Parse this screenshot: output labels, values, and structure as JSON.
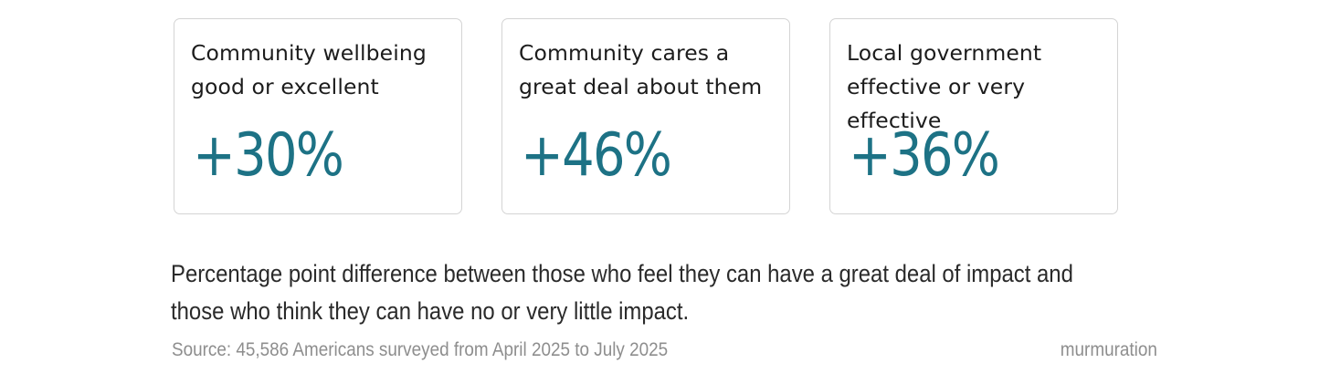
{
  "chart_data": {
    "type": "table",
    "cards": [
      {
        "label": "Community wellbeing good or excellent",
        "value_label": "+30%",
        "value": 30
      },
      {
        "label": "Community cares a great deal about them",
        "value_label": "+46%",
        "value": 46
      },
      {
        "label": "Local government effective or very effective",
        "value_label": "+36%",
        "value": 36
      }
    ],
    "caption": "Percentage point difference between those who feel they can have a great deal of impact and those who think they can have no or very little impact.",
    "source": "Source: 45,586 Americans surveyed from April 2025 to July 2025",
    "brand": "murmuration"
  },
  "colors": {
    "accent": "#1d7285",
    "text": "#1c1c1c",
    "muted": "#8e8e8e",
    "card_border": "#d4d4d4"
  }
}
